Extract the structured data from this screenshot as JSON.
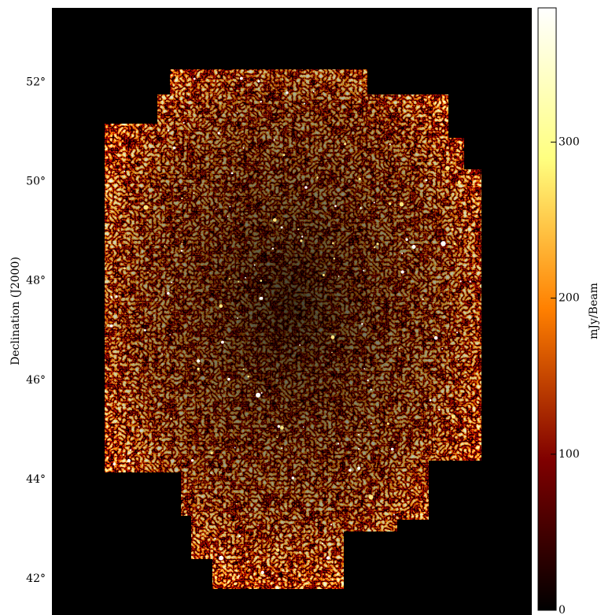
{
  "chart_data": {
    "type": "image",
    "ylabel": "Declination (J2000)",
    "ylim": [
      41.27,
      53.5
    ],
    "yticks": [
      {
        "value": 42,
        "label": "42°"
      },
      {
        "value": 44,
        "label": "44°"
      },
      {
        "value": 46,
        "label": "46°"
      },
      {
        "value": 48,
        "label": "48°"
      },
      {
        "value": 50,
        "label": "50°"
      },
      {
        "value": 52,
        "label": "52°"
      }
    ],
    "colorbar": {
      "label": "mJy/Beam",
      "lim": [
        0,
        386
      ],
      "ticks": [
        0,
        100,
        200,
        300
      ],
      "colors": [
        "#000000",
        "#800000",
        "#ff8000",
        "#ffff80",
        "#ffffff"
      ]
    }
  }
}
